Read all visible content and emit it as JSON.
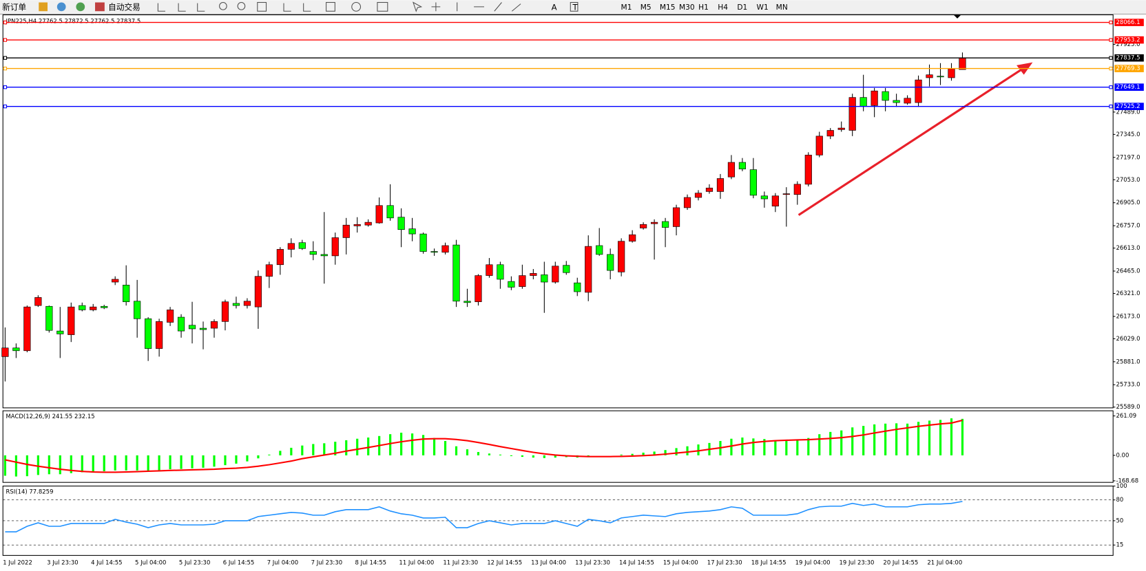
{
  "toolbar": {
    "new_order": "新订单",
    "auto_trading": "自动交易",
    "timeframes": [
      "M1",
      "M5",
      "M15",
      "M30",
      "H1",
      "H4",
      "D1",
      "W1",
      "MN"
    ]
  },
  "chart_data": [
    {
      "type": "candlestick",
      "title": "JPN225,H4  27762.5 27872.5 27762.5 27837.5",
      "categories": [
        "1 Jul 2022",
        null,
        null,
        null,
        "3 Jul 23:30",
        null,
        null,
        null,
        "4 Jul 14:55",
        null,
        null,
        null,
        "5 Jul 04:00",
        null,
        null,
        null,
        "5 Jul 23:30",
        null,
        null,
        null,
        "6 Jul 14:55",
        null,
        null,
        null,
        "7 Jul 04:00",
        null,
        null,
        null,
        "7 Jul 23:30",
        null,
        null,
        null,
        "8 Jul 14:55",
        null,
        null,
        null,
        "11 Jul 04:00",
        null,
        null,
        null,
        "11 Jul 23:30",
        null,
        null,
        null,
        "12 Jul 14:55",
        null,
        null,
        null,
        "13 Jul 04:00",
        null,
        null,
        null,
        "13 Jul 23:30",
        null,
        null,
        null,
        "14 Jul 14:55",
        null,
        null,
        null,
        "15 Jul 04:00",
        null,
        null,
        null,
        "17 Jul 23:30",
        null,
        null,
        null,
        "18 Jul 14:55",
        null,
        null,
        null,
        "19 Jul 04:00",
        null,
        null,
        null,
        "19 Jul 23:30",
        null,
        null,
        null,
        "20 Jul 14:55",
        null,
        null,
        null,
        "21 Jul 04:00",
        null,
        null,
        null
      ],
      "open": [
        25914,
        25970,
        25952,
        26243,
        26238,
        26079,
        26055,
        26243,
        26215,
        26238,
        26394,
        26375,
        26271,
        26158,
        25966,
        26135,
        26168,
        26116,
        26097,
        26097,
        26140,
        26257,
        26243,
        26234,
        26431,
        26506,
        26605,
        26648,
        26591,
        26572,
        26563,
        26680,
        26756,
        26761,
        26775,
        26887,
        26812,
        26737,
        26704,
        26591,
        26586,
        26633,
        26271,
        26267,
        26436,
        26506,
        26398,
        26365,
        26436,
        26441,
        26394,
        26502,
        26389,
        26328,
        26629,
        26572,
        26459,
        26657,
        26742,
        26770,
        26784,
        26751,
        26873,
        26939,
        26977,
        26977,
        27071,
        27165,
        27118,
        26949,
        26883,
        26958,
        26958,
        27024,
        27212,
        27334,
        27376,
        27371,
        27583,
        27531,
        27621,
        27564,
        27546,
        27550,
        27710,
        27720,
        27710,
        27762.5
      ],
      "high": [
        26102,
        25999,
        26243,
        26309,
        26243,
        26234,
        26262,
        26262,
        26253,
        26248,
        26431,
        26502,
        26408,
        26168,
        26158,
        26234,
        26187,
        26267,
        26140,
        26154,
        26281,
        26300,
        26290,
        26469,
        26525,
        26619,
        26676,
        26666,
        26657,
        26845,
        26713,
        26807,
        26812,
        26798,
        26939,
        27024,
        26869,
        26807,
        26713,
        26610,
        26648,
        26666,
        26351,
        26445,
        26549,
        26525,
        26431,
        26506,
        26478,
        26525,
        26525,
        26530,
        26422,
        26695,
        26742,
        26610,
        26676,
        26728,
        26779,
        26798,
        26807,
        26892,
        26958,
        26986,
        27024,
        27090,
        27212,
        27193,
        27193,
        26977,
        26967,
        27005,
        27043,
        27230,
        27362,
        27386,
        27428,
        27607,
        27729,
        27644,
        27644,
        27607,
        27597,
        27724,
        27795,
        27804,
        27804,
        27872.5
      ],
      "low": [
        25754,
        25905,
        25942,
        26234,
        26069,
        25905,
        26008,
        26206,
        26206,
        26220,
        26375,
        26243,
        26036,
        25886,
        25914,
        26111,
        26036,
        25999,
        25961,
        26036,
        26083,
        26224,
        26224,
        26093,
        26356,
        26441,
        26553,
        26601,
        26535,
        26384,
        26506,
        26572,
        26713,
        26751,
        26770,
        26789,
        26619,
        26657,
        26577,
        26563,
        26572,
        26234,
        26234,
        26243,
        26422,
        26351,
        26342,
        26351,
        26412,
        26196,
        26384,
        26441,
        26304,
        26271,
        26563,
        26412,
        26431,
        26648,
        26732,
        26539,
        26619,
        26695,
        26859,
        26920,
        26963,
        26930,
        27057,
        27108,
        26934,
        26873,
        26845,
        26751,
        26892,
        27010,
        27198,
        27315,
        27362,
        27334,
        27494,
        27456,
        27494,
        27522,
        27536,
        27522,
        27654,
        27663,
        27691,
        27762.5
      ],
      "close": [
        25970,
        25952,
        26234,
        26295,
        26083,
        26060,
        26234,
        26215,
        26234,
        26229,
        26412,
        26267,
        26158,
        25966,
        26140,
        26215,
        26079,
        26093,
        26088,
        26140,
        26267,
        26243,
        26271,
        26431,
        26506,
        26605,
        26643,
        26610,
        26572,
        26563,
        26680,
        26761,
        26765,
        26779,
        26887,
        26807,
        26732,
        26704,
        26591,
        26586,
        26629,
        26271,
        26262,
        26436,
        26506,
        26412,
        26361,
        26436,
        26450,
        26394,
        26497,
        26455,
        26332,
        26624,
        26572,
        26469,
        26657,
        26699,
        26765,
        26779,
        26746,
        26873,
        26939,
        26967,
        27000,
        27061,
        27165,
        27122,
        26953,
        26930,
        26949,
        26963,
        27024,
        27212,
        27334,
        27371,
        27386,
        27583,
        27527,
        27625,
        27564,
        27550,
        27578,
        27696,
        27729,
        27715,
        27767,
        27837.5
      ],
      "up_color": "#ff0000",
      "down_color": "#00ff00",
      "ylim": [
        25584,
        28115
      ],
      "yticks": [
        {
          "value": 25589,
          "label": "25589.0"
        },
        {
          "value": 25733,
          "label": "25733.0"
        },
        {
          "value": 25881,
          "label": "25881.0"
        },
        {
          "value": 26029,
          "label": "26029.0"
        },
        {
          "value": 26173,
          "label": "26173.0"
        },
        {
          "value": 26321,
          "label": "26321.0"
        },
        {
          "value": 26465,
          "label": "26465.0"
        },
        {
          "value": 26613,
          "label": "26613.0"
        },
        {
          "value": 26757,
          "label": "26757.0"
        },
        {
          "value": 26905,
          "label": "26905.0"
        },
        {
          "value": 27053,
          "label": "27053.0"
        },
        {
          "value": 27197,
          "label": "27197.0"
        },
        {
          "value": 27345,
          "label": "27345.0"
        },
        {
          "value": 27489,
          "label": "27489.0"
        },
        {
          "value": 27925,
          "label": "27925.0"
        }
      ],
      "levels": [
        {
          "value": 28066.1,
          "color": "#ff0000"
        },
        {
          "value": 27953.2,
          "color": "#ff0000"
        },
        {
          "value": 27837.5,
          "color": "#000000"
        },
        {
          "value": 27769.3,
          "color": "#ffa500"
        },
        {
          "value": 27649.1,
          "color": "#0000ff"
        },
        {
          "value": 27525.2,
          "color": "#0000ff"
        }
      ]
    },
    {
      "type": "macd",
      "title": "MACD(12,26,9) 241.55 232.15",
      "series": [
        {
          "style": "histogram",
          "color": "#00ff00",
          "values": [
            -135,
            -140,
            -138,
            -130,
            -125,
            -125,
            -118,
            -112,
            -108,
            -105,
            -100,
            -100,
            -100,
            -105,
            -100,
            -92,
            -90,
            -86,
            -82,
            -75,
            -65,
            -55,
            -40,
            -20,
            5,
            30,
            50,
            65,
            75,
            80,
            90,
            100,
            110,
            118,
            128,
            140,
            150,
            145,
            135,
            115,
            95,
            60,
            40,
            22,
            12,
            5,
            -5,
            -10,
            -15,
            -18,
            -15,
            -12,
            -15,
            -5,
            0,
            0,
            5,
            10,
            18,
            25,
            35,
            48,
            60,
            72,
            82,
            95,
            110,
            118,
            112,
            108,
            100,
            95,
            100,
            115,
            140,
            155,
            165,
            185,
            195,
            205,
            210,
            212,
            210,
            222,
            230,
            235,
            245,
            241.55
          ]
        },
        {
          "style": "line",
          "color": "#ff0000",
          "values": [
            -30,
            -45,
            -60,
            -72,
            -82,
            -92,
            -100,
            -106,
            -110,
            -112,
            -112,
            -110,
            -108,
            -105,
            -103,
            -100,
            -98,
            -96,
            -94,
            -92,
            -88,
            -85,
            -80,
            -72,
            -62,
            -50,
            -38,
            -22,
            -10,
            2,
            14,
            28,
            40,
            52,
            65,
            78,
            90,
            100,
            108,
            110,
            110,
            105,
            97,
            85,
            72,
            58,
            45,
            32,
            20,
            10,
            2,
            -3,
            -6,
            -8,
            -8,
            -8,
            -7,
            -5,
            -2,
            2,
            8,
            15,
            22,
            30,
            40,
            50,
            62,
            75,
            85,
            92,
            97,
            100,
            102,
            104,
            108,
            112,
            117,
            125,
            135,
            148,
            160,
            172,
            182,
            192,
            200,
            208,
            214,
            232.15
          ]
        }
      ],
      "ylim": [
        -179,
        295
      ],
      "yticks": [
        261.09,
        {
          "value": 0,
          "label": "0.00"
        },
        -168.68
      ]
    },
    {
      "type": "line",
      "title": "RSI(14) 77.8259",
      "series": [
        {
          "color": "#1e90ff",
          "values": [
            34,
            34,
            42,
            47,
            42,
            42,
            46,
            46,
            46,
            46,
            52,
            48,
            45,
            40,
            44,
            46,
            44,
            44,
            44,
            45,
            50,
            50,
            50,
            56,
            58,
            60,
            62,
            61,
            58,
            58,
            63,
            66,
            66,
            66,
            70,
            64,
            60,
            58,
            54,
            54,
            55,
            40,
            40,
            46,
            50,
            47,
            44,
            46,
            46,
            46,
            50,
            46,
            42,
            52,
            50,
            47,
            54,
            56,
            58,
            57,
            56,
            60,
            62,
            63,
            64,
            66,
            70,
            68,
            58,
            58,
            58,
            58,
            60,
            66,
            70,
            71,
            71,
            75,
            72,
            74,
            70,
            70,
            70,
            73,
            74,
            74,
            75,
            77.8259
          ]
        }
      ],
      "ylim": [
        0,
        100
      ],
      "yticks": [
        15,
        50,
        80,
        100
      ],
      "levels": [
        80,
        50,
        15
      ]
    }
  ]
}
